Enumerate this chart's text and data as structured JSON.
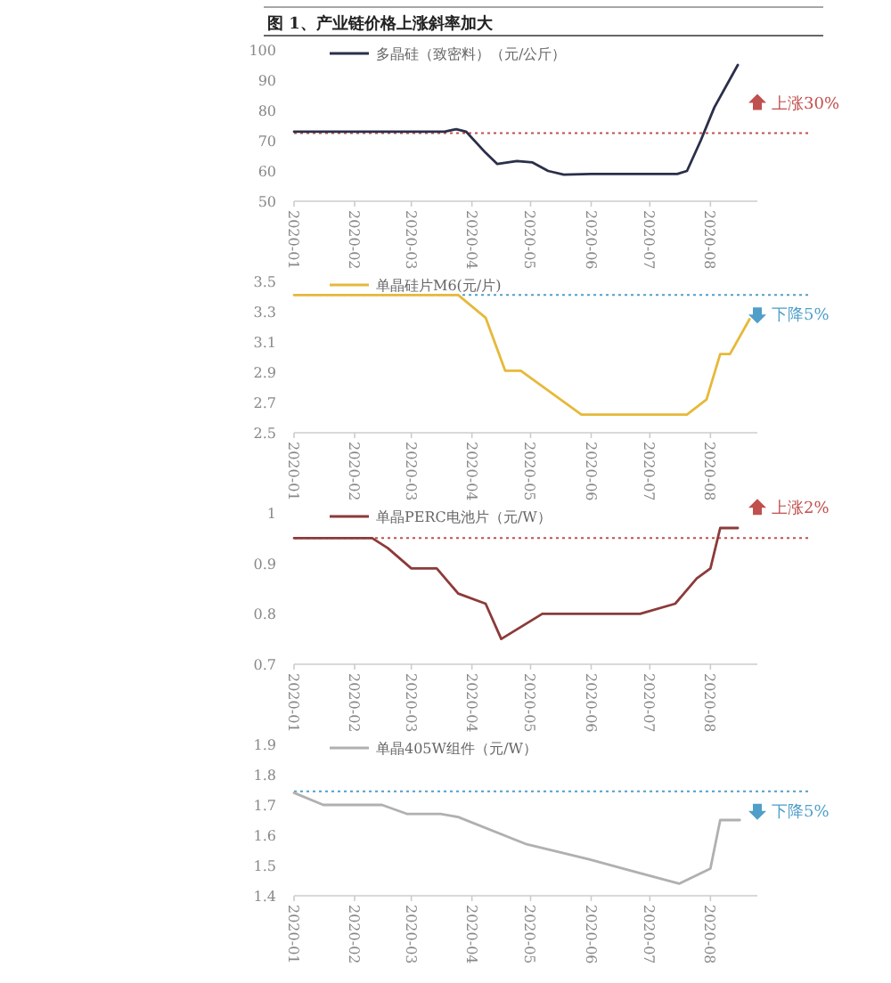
{
  "chart_data": [
    {
      "type": "line",
      "title": "图 1、产业链价格上涨斜率加大",
      "legend": "top",
      "marker": "none",
      "line_style": "solid",
      "grid": false,
      "x": [
        "2020-01-01",
        "2020-03-18",
        "2020-03-24",
        "2020-03-29",
        "2020-04-08",
        "2020-04-14",
        "2020-04-24",
        "2020-05-02",
        "2020-05-10",
        "2020-05-18",
        "2020-06-01",
        "2020-07-01",
        "2020-07-15",
        "2020-07-20",
        "2020-07-27",
        "2020-08-03",
        "2020-08-15"
      ],
      "series": [
        {
          "name": "多晶硅（致密料）（元/公斤）",
          "color": "#2b2f4a",
          "values": [
            73,
            73,
            73.8,
            73,
            66,
            62.3,
            63.3,
            62.8,
            60,
            58.8,
            59,
            59,
            59,
            60,
            70,
            81,
            95
          ]
        }
      ],
      "xlim": [
        "2020-01-01",
        "2020-08-25"
      ],
      "xticks": [
        {
          "value": "2020-01-01",
          "label": "2020-01"
        },
        {
          "value": "2020-02-01",
          "label": "2020-02"
        },
        {
          "value": "2020-03-01",
          "label": "2020-03"
        },
        {
          "value": "2020-04-01",
          "label": "2020-04"
        },
        {
          "value": "2020-05-01",
          "label": "2020-05"
        },
        {
          "value": "2020-06-01",
          "label": "2020-06"
        },
        {
          "value": "2020-07-01",
          "label": "2020-07"
        },
        {
          "value": "2020-08-01",
          "label": "2020-08"
        }
      ],
      "ylim": [
        50,
        100
      ],
      "yticks": [
        50,
        60,
        70,
        80,
        90,
        100
      ],
      "ref_lines": [
        {
          "axis": "y",
          "value": 72.5,
          "label": "上涨30%",
          "color": "#c0504d",
          "line_style": "dotted"
        }
      ]
    },
    {
      "type": "line",
      "legend": "top",
      "marker": "none",
      "line_style": "solid",
      "grid": false,
      "x": [
        "2020-01-01",
        "2020-03-25",
        "2020-04-08",
        "2020-04-18",
        "2020-04-26",
        "2020-05-27",
        "2020-07-20",
        "2020-07-30",
        "2020-08-06",
        "2020-08-11",
        "2020-08-21"
      ],
      "series": [
        {
          "name": "单晶硅片M6(元/片)",
          "color": "#e6b93a",
          "values": [
            3.41,
            3.41,
            3.26,
            2.91,
            2.91,
            2.62,
            2.62,
            2.72,
            3.02,
            3.02,
            3.25
          ]
        }
      ],
      "xlim": [
        "2020-01-01",
        "2020-08-25"
      ],
      "xticks": [
        {
          "value": "2020-01-01",
          "label": "2020-01"
        },
        {
          "value": "2020-02-01",
          "label": "2020-02"
        },
        {
          "value": "2020-03-01",
          "label": "2020-03"
        },
        {
          "value": "2020-04-01",
          "label": "2020-04"
        },
        {
          "value": "2020-05-01",
          "label": "2020-05"
        },
        {
          "value": "2020-06-01",
          "label": "2020-06"
        },
        {
          "value": "2020-07-01",
          "label": "2020-07"
        },
        {
          "value": "2020-08-01",
          "label": "2020-08"
        }
      ],
      "ylim": [
        2.5,
        3.5
      ],
      "yticks": [
        2.5,
        2.7,
        2.9,
        3.1,
        3.3,
        3.5
      ],
      "ref_lines": [
        {
          "axis": "y",
          "value": 3.41,
          "label": "下降5%",
          "color": "#4f9fc9",
          "line_style": "dotted"
        }
      ]
    },
    {
      "type": "line",
      "legend": "top",
      "marker": "none",
      "line_style": "solid",
      "grid": false,
      "x": [
        "2020-01-01",
        "2020-02-10",
        "2020-02-18",
        "2020-03-01",
        "2020-03-14",
        "2020-03-25",
        "2020-04-08",
        "2020-04-16",
        "2020-05-07",
        "2020-06-26",
        "2020-07-14",
        "2020-07-25",
        "2020-08-01",
        "2020-08-06",
        "2020-08-15"
      ],
      "series": [
        {
          "name": "单晶PERC电池片（元/W）",
          "color": "#8c3a3a",
          "values": [
            0.95,
            0.95,
            0.93,
            0.89,
            0.89,
            0.84,
            0.82,
            0.75,
            0.8,
            0.8,
            0.82,
            0.87,
            0.89,
            0.97,
            0.97
          ]
        }
      ],
      "xlim": [
        "2020-01-01",
        "2020-08-25"
      ],
      "xticks": [
        {
          "value": "2020-01-01",
          "label": "2020-01"
        },
        {
          "value": "2020-02-01",
          "label": "2020-02"
        },
        {
          "value": "2020-03-01",
          "label": "2020-03"
        },
        {
          "value": "2020-04-01",
          "label": "2020-04"
        },
        {
          "value": "2020-05-01",
          "label": "2020-05"
        },
        {
          "value": "2020-06-01",
          "label": "2020-06"
        },
        {
          "value": "2020-07-01",
          "label": "2020-07"
        },
        {
          "value": "2020-08-01",
          "label": "2020-08"
        }
      ],
      "ylim": [
        0.7,
        1
      ],
      "yticks": [
        0.7,
        0.8,
        0.9,
        1
      ],
      "ref_lines": [
        {
          "axis": "y",
          "value": 0.95,
          "label": "上涨2%",
          "color": "#c0504d",
          "line_style": "dotted"
        }
      ]
    },
    {
      "type": "line",
      "legend": "top",
      "marker": "none",
      "line_style": "solid",
      "grid": false,
      "x": [
        "2020-01-01",
        "2020-01-16",
        "2020-02-15",
        "2020-02-28",
        "2020-03-16",
        "2020-03-25",
        "2020-04-29",
        "2020-05-31",
        "2020-06-23",
        "2020-07-16",
        "2020-08-01",
        "2020-08-06",
        "2020-08-16"
      ],
      "series": [
        {
          "name": "单晶405W组件（元/W）",
          "color": "#b0b0b0",
          "values": [
            1.74,
            1.7,
            1.7,
            1.67,
            1.67,
            1.66,
            1.57,
            1.52,
            1.48,
            1.44,
            1.49,
            1.65,
            1.65
          ]
        }
      ],
      "xlim": [
        "2020-01-01",
        "2020-08-25"
      ],
      "xticks": [
        {
          "value": "2020-01-01",
          "label": "2020-01"
        },
        {
          "value": "2020-02-01",
          "label": "2020-02"
        },
        {
          "value": "2020-03-01",
          "label": "2020-03"
        },
        {
          "value": "2020-04-01",
          "label": "2020-04"
        },
        {
          "value": "2020-05-01",
          "label": "2020-05"
        },
        {
          "value": "2020-06-01",
          "label": "2020-06"
        },
        {
          "value": "2020-07-01",
          "label": "2020-07"
        },
        {
          "value": "2020-08-01",
          "label": "2020-08"
        }
      ],
      "ylim": [
        1.4,
        1.9
      ],
      "yticks": [
        1.4,
        1.5,
        1.6,
        1.7,
        1.8,
        1.9
      ],
      "ref_lines": [
        {
          "axis": "y",
          "value": 1.745,
          "label": "下降5%",
          "color": "#4f9fc9",
          "line_style": "dotted"
        }
      ]
    }
  ]
}
